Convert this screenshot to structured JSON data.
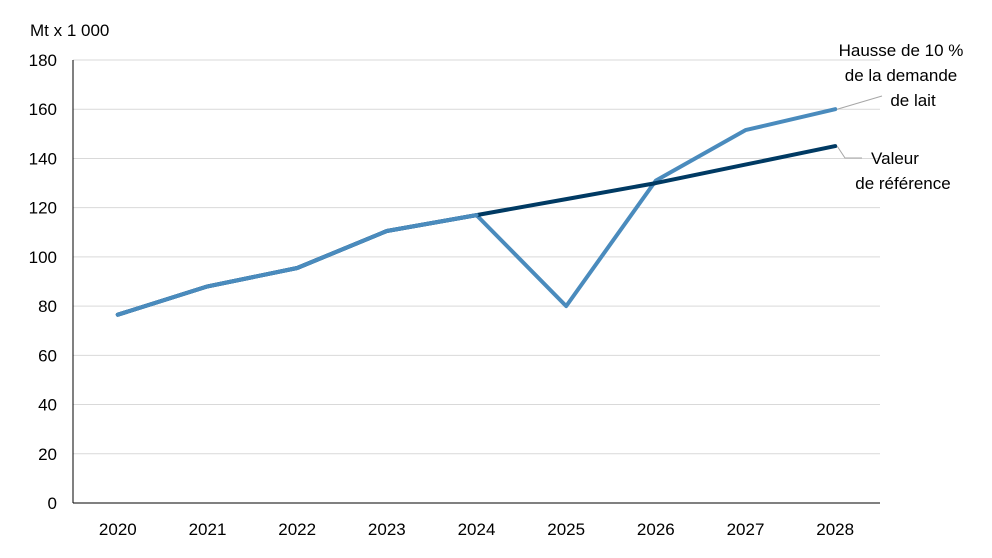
{
  "chart_data": {
    "type": "line",
    "ylabel": "Mt x 1 000",
    "xlabel": "",
    "title": "",
    "ylim": [
      0,
      180
    ],
    "yticks": [
      0,
      20,
      40,
      60,
      80,
      100,
      120,
      140,
      160,
      180
    ],
    "categories": [
      "2020",
      "2021",
      "2022",
      "2023",
      "2024",
      "2025",
      "2026",
      "2027",
      "2028"
    ],
    "grid": "horizontal",
    "series": [
      {
        "name": "Valeur de référence",
        "label_lines": [
          "Valeur",
          "de référence"
        ],
        "color": "#003a63",
        "values": [
          76.5,
          88,
          95.5,
          110.5,
          117,
          123.5,
          130,
          137.5,
          145
        ]
      },
      {
        "name": "Hausse de 10 % de la demande de lait",
        "label_lines": [
          "Hausse de 10 %",
          "de la demande",
          "de lait"
        ],
        "color": "#4a8bbd",
        "values": [
          76.5,
          88,
          95.5,
          110.5,
          117,
          80,
          131,
          151.5,
          160
        ]
      }
    ]
  }
}
